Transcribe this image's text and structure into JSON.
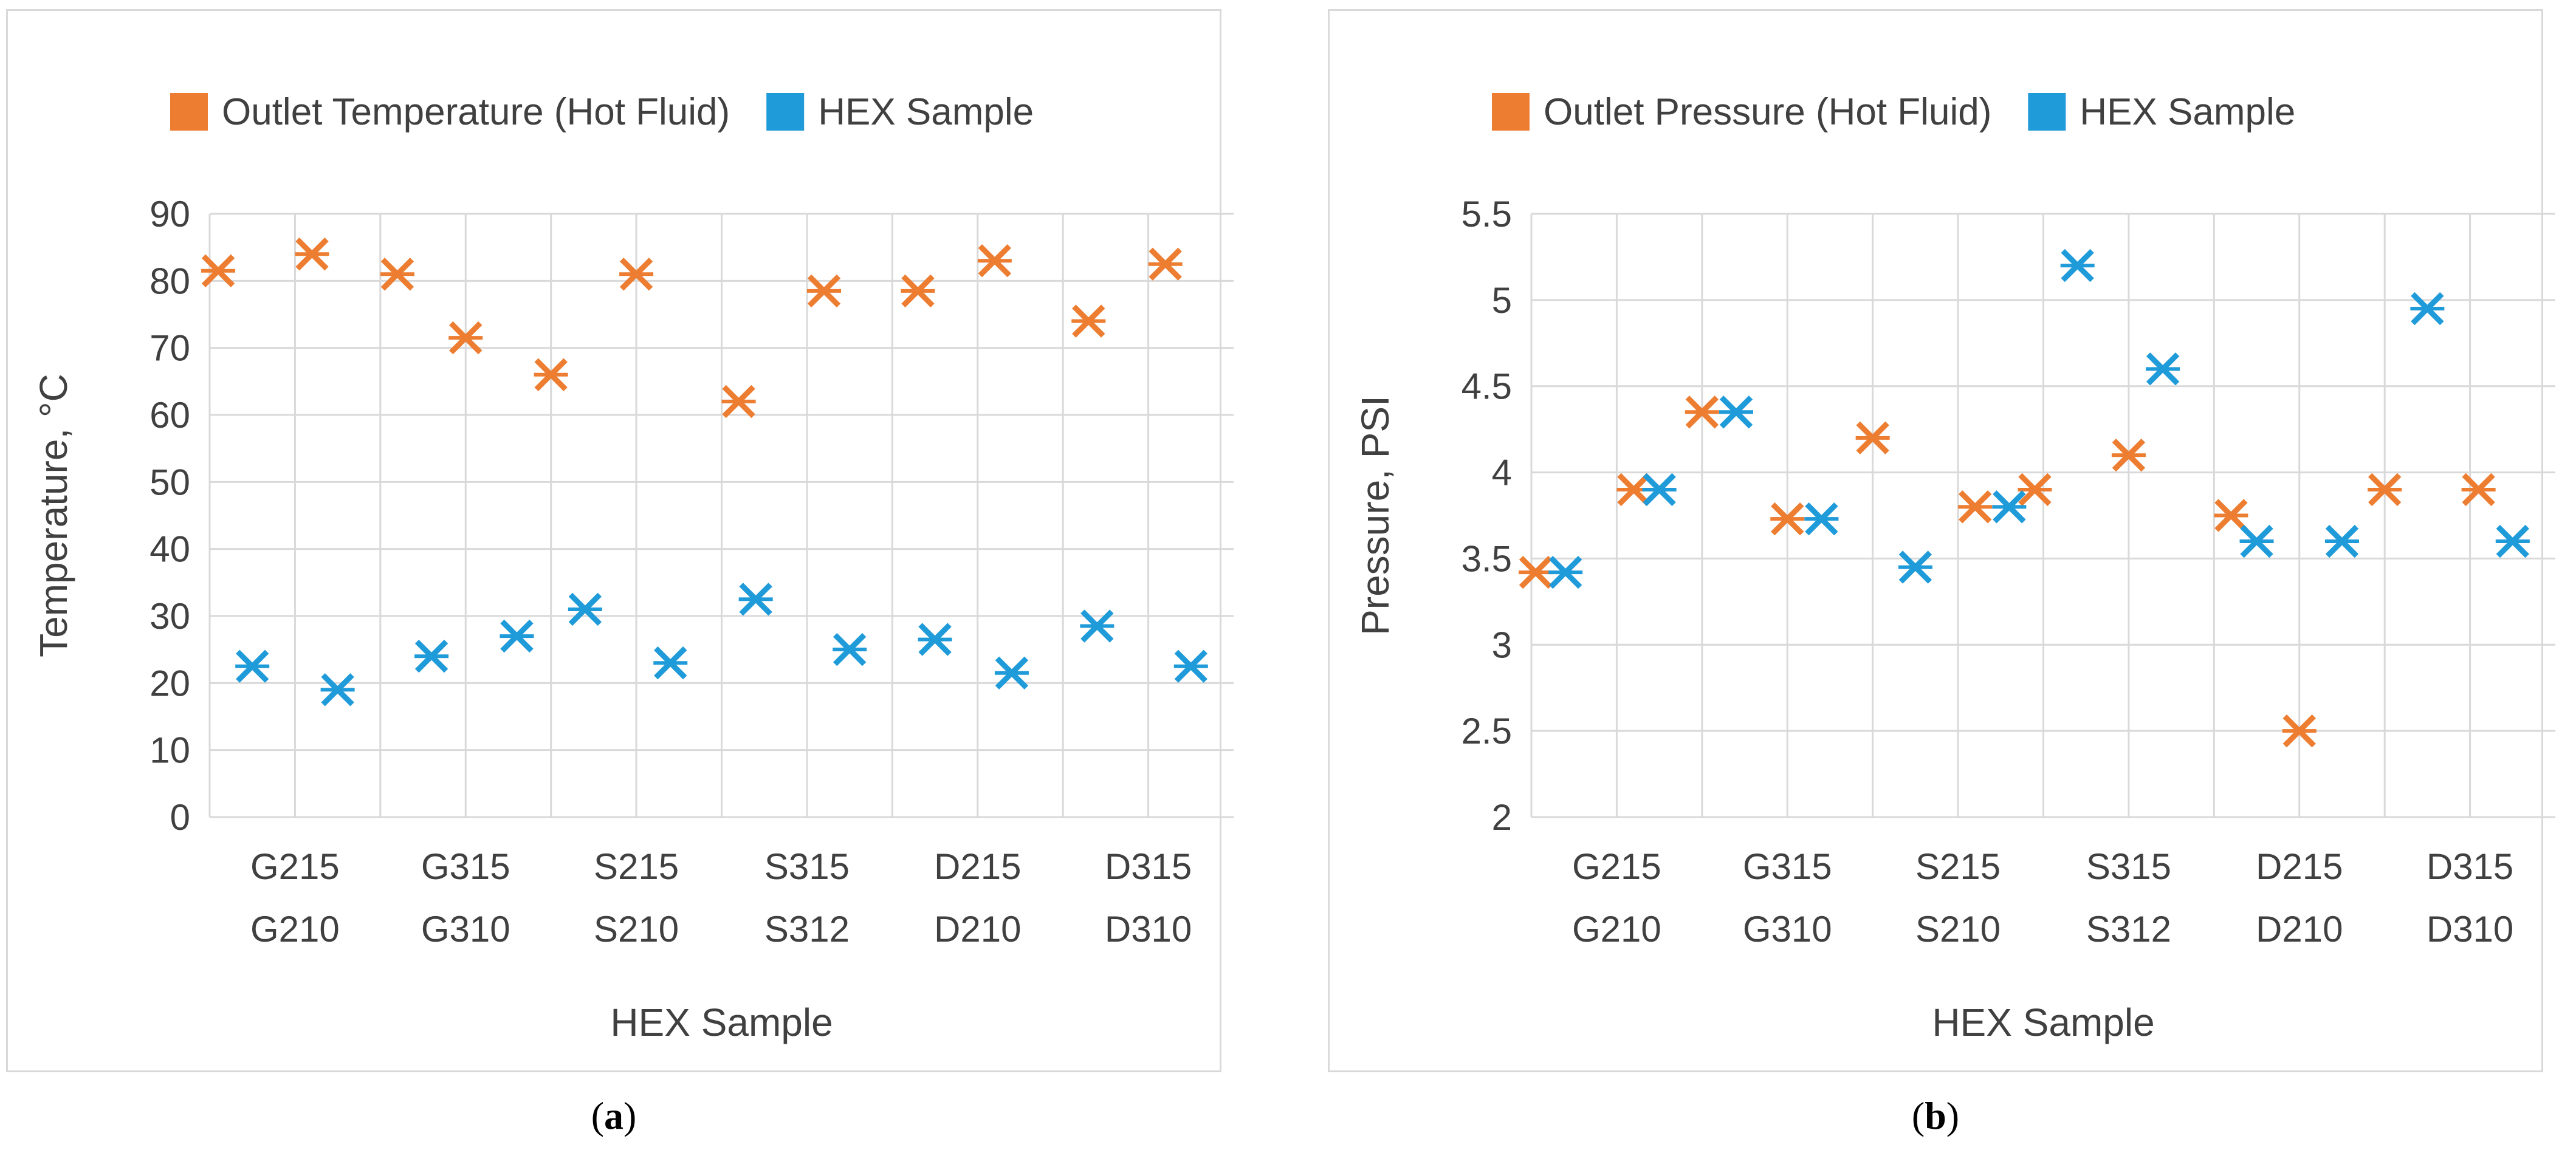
{
  "figures": [
    {
      "id": "a",
      "caption_label": "a",
      "chart_data": {
        "type": "scatter",
        "title": "",
        "xlabel": "HEX Sample",
        "ylabel": "Temperature, °C",
        "categories": [
          "G210",
          "G215",
          "G310",
          "G315",
          "S210",
          "S215",
          "S312",
          "S315",
          "D210",
          "D215",
          "D310",
          "D315"
        ],
        "ylim": [
          0,
          90
        ],
        "yticks": [
          0,
          10,
          20,
          30,
          40,
          50,
          60,
          70,
          80,
          90
        ],
        "ytick_labels": [
          "0",
          "10",
          "20",
          "30",
          "40",
          "50",
          "60",
          "70",
          "80",
          "90"
        ],
        "grid": true,
        "legend_position": "top",
        "series": [
          {
            "name": "Outlet Temperature (Hot Fluid)",
            "color": "#ED7D31",
            "x": [
              0.1,
              1.2,
              2.2,
              3.0,
              4.0,
              5.0,
              6.2,
              7.2,
              8.3,
              9.2,
              10.3,
              11.2
            ],
            "values": [
              81.5,
              84,
              81,
              71.5,
              66,
              81,
              62,
              78.5,
              78.5,
              83,
              74,
              82.5
            ]
          },
          {
            "name": "HEX Sample",
            "color": "#1F9BD9",
            "x": [
              0.5,
              1.5,
              2.6,
              3.6,
              4.4,
              5.4,
              6.4,
              7.5,
              8.5,
              9.4,
              10.4,
              11.5
            ],
            "values": [
              22.5,
              19,
              24,
              27,
              31,
              23,
              32.5,
              25,
              26.5,
              21.5,
              28.5,
              22.5
            ]
          }
        ]
      }
    },
    {
      "id": "b",
      "caption_label": "b",
      "chart_data": {
        "type": "scatter",
        "title": "",
        "xlabel": "HEX Sample",
        "ylabel": "Pressure, PSI",
        "categories": [
          "G210",
          "G215",
          "G310",
          "G315",
          "S210",
          "S215",
          "S312",
          "S315",
          "D210",
          "D215",
          "D310",
          "D315"
        ],
        "ylim": [
          2,
          5.5
        ],
        "yticks": [
          2,
          2.5,
          3,
          3.5,
          4,
          4.5,
          5,
          5.5
        ],
        "ytick_labels": [
          "2",
          "2.5",
          "3",
          "3.5",
          "4",
          "4.5",
          "5",
          "5.5"
        ],
        "grid": true,
        "legend_position": "top",
        "series": [
          {
            "name": "Outlet Pressure (Hot Fluid)",
            "color": "#ED7D31",
            "x": [
              0.05,
              1.2,
              2.0,
              3.0,
              4.0,
              5.2,
              5.9,
              7.0,
              8.2,
              9.0,
              10.0,
              11.1
            ],
            "values": [
              3.42,
              3.9,
              4.35,
              3.73,
              4.2,
              3.8,
              3.9,
              4.1,
              3.75,
              2.5,
              3.9,
              3.9
            ]
          },
          {
            "name": "HEX Sample",
            "color": "#1F9BD9",
            "x": [
              0.4,
              1.5,
              2.4,
              3.4,
              4.5,
              5.6,
              6.4,
              7.4,
              8.5,
              9.5,
              10.5,
              11.5
            ],
            "values": [
              3.42,
              3.9,
              4.35,
              3.73,
              3.45,
              3.8,
              5.2,
              4.6,
              3.6,
              3.6,
              4.95,
              3.6
            ]
          }
        ]
      }
    }
  ]
}
